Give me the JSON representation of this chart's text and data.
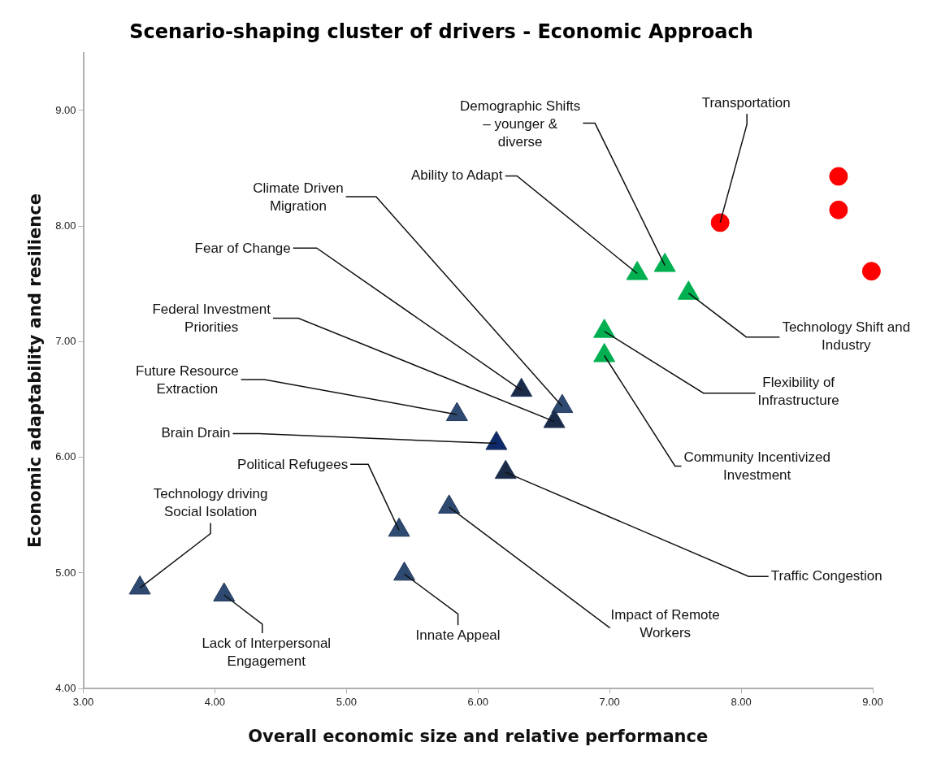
{
  "chart_data": {
    "type": "scatter",
    "title": "Scenario-shaping cluster of drivers - Economic Approach",
    "xlabel": "Overall economic size and relative performance",
    "ylabel": "Economic adaptability and resilience",
    "xlim": [
      3,
      9
    ],
    "xticks": [
      {
        "value": 3,
        "label": "3.00"
      },
      {
        "value": 4,
        "label": "4.00"
      },
      {
        "value": 5,
        "label": "5.00"
      },
      {
        "value": 6,
        "label": "6.00"
      },
      {
        "value": 7,
        "label": "7.00"
      },
      {
        "value": 8,
        "label": "8.00"
      },
      {
        "value": 9,
        "label": "9.00"
      }
    ],
    "ylim": [
      4,
      9.5
    ],
    "yticks": [
      {
        "value": 4,
        "label": "4.00"
      },
      {
        "value": 5,
        "label": "5.00"
      },
      {
        "value": 6,
        "label": "6.00"
      },
      {
        "value": 7,
        "label": "7.00"
      },
      {
        "value": 8,
        "label": "8.00"
      },
      {
        "value": 9,
        "label": "9.00"
      }
    ],
    "grid": false,
    "legend": false,
    "series": [
      {
        "color": "#00b050",
        "marker": "triangle",
        "x": [
          7.21,
          7.42,
          7.6,
          6.96,
          6.96
        ],
        "values": [
          7.59,
          7.66,
          7.42,
          7.09,
          6.88
        ]
      },
      {
        "color": "#ff0000",
        "marker": "circle",
        "x": [
          7.84,
          8.74,
          8.74,
          8.99
        ],
        "values": [
          8.03,
          8.43,
          8.14,
          7.61
        ]
      },
      {
        "color": "#23395d",
        "marker": "triangle",
        "colors": [
          "#1b2a47",
          "#2e4a70",
          "#1b2a47",
          "#2e4a70",
          "#0f2a6b",
          "#1b2a47",
          "#2e4a70",
          "#2e4a70",
          "#2e4a70",
          "#2e4a70",
          "#2e4a70"
        ],
        "x": [
          6.33,
          6.64,
          6.58,
          5.84,
          6.14,
          6.21,
          5.4,
          5.78,
          5.44,
          3.43,
          4.07
        ],
        "values": [
          6.58,
          6.44,
          6.31,
          6.37,
          6.12,
          5.87,
          5.37,
          5.57,
          4.99,
          4.87,
          4.81
        ]
      }
    ],
    "annotations": [
      {
        "text": "Ability to Adapt",
        "x": 7.21,
        "y": 7.59
      },
      {
        "text": "Demographic Shifts – younger & diverse",
        "x": 7.42,
        "y": 7.66
      },
      {
        "text": "Technology Shift and Industry",
        "x": 7.6,
        "y": 7.42
      },
      {
        "text": "Flexibility of Infrastructure",
        "x": 6.96,
        "y": 7.09
      },
      {
        "text": "Community Incentivized Investment",
        "x": 6.96,
        "y": 6.88
      },
      {
        "text": "Transportation",
        "x": 7.84,
        "y": 8.03
      },
      {
        "text": "Fear of Change",
        "x": 6.33,
        "y": 6.58
      },
      {
        "text": "Climate Driven Migration",
        "x": 6.64,
        "y": 6.44
      },
      {
        "text": "Federal Investment Priorities",
        "x": 6.58,
        "y": 6.31
      },
      {
        "text": "Future Resource Extraction",
        "x": 5.84,
        "y": 6.37
      },
      {
        "text": "Brain Drain",
        "x": 6.14,
        "y": 6.12
      },
      {
        "text": "Traffic Congestion",
        "x": 6.21,
        "y": 5.87
      },
      {
        "text": "Political Refugees",
        "x": 5.4,
        "y": 5.37
      },
      {
        "text": "Impact of Remote Workers",
        "x": 5.78,
        "y": 5.57
      },
      {
        "text": "Innate Appeal",
        "x": 5.44,
        "y": 4.99
      },
      {
        "text": "Technology driving Social Isolation",
        "x": 3.43,
        "y": 4.87
      },
      {
        "text": "Lack of Interpersonal Engagement",
        "x": 4.07,
        "y": 4.81
      }
    ]
  }
}
